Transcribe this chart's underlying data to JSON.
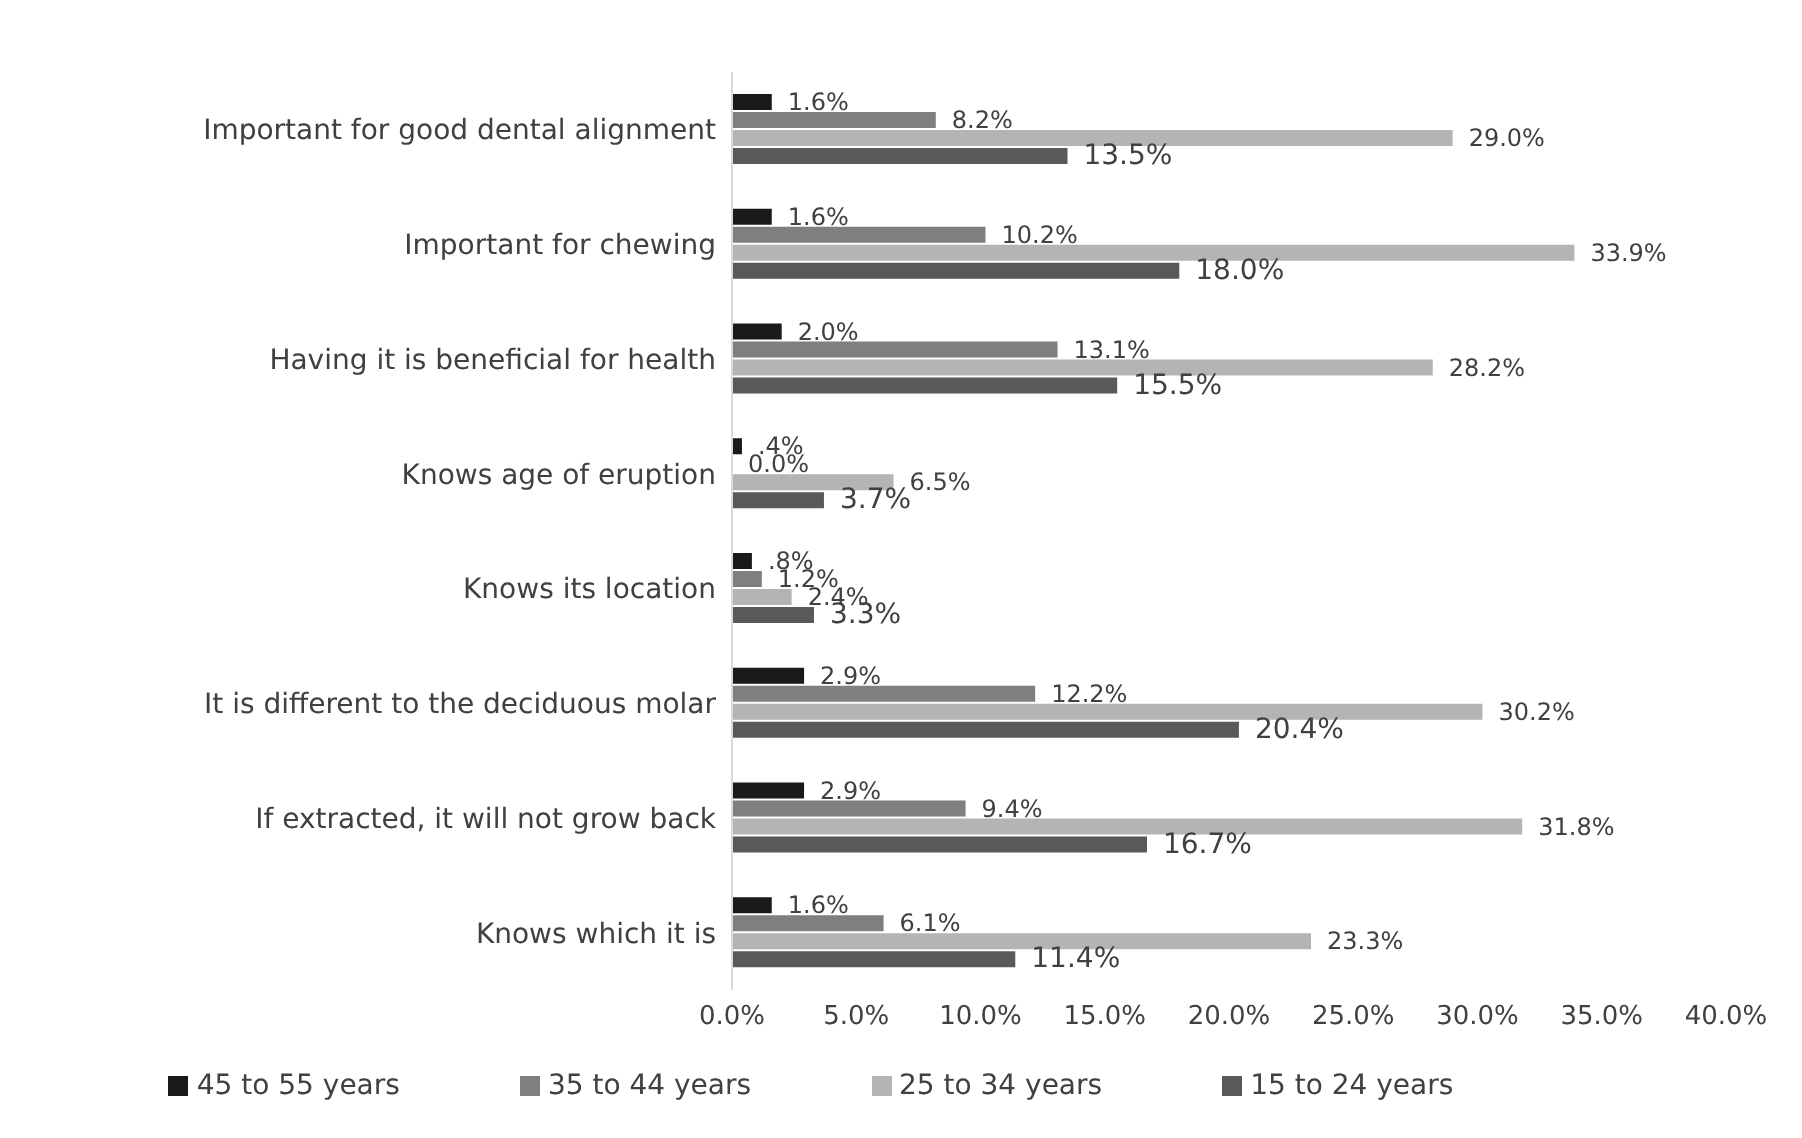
{
  "chart_data": {
    "type": "bar",
    "orientation": "horizontal",
    "categories": [
      "Important for good dental alignment",
      "Important for chewing",
      "Having it is beneficial for health",
      "Knows age of eruption",
      "Knows its location",
      "It is different to the deciduous molar",
      "If extracted, it will not grow back",
      "Knows which it is"
    ],
    "series": [
      {
        "name": "45 to 55 years",
        "color": "#1a1a1a",
        "values": [
          1.6,
          1.6,
          2.0,
          0.4,
          0.8,
          2.9,
          2.9,
          1.6
        ],
        "value_labels": [
          "1.6%",
          "1.6%",
          "2.0%",
          ".4%",
          ".8%",
          "2.9%",
          "2.9%",
          "1.6%"
        ]
      },
      {
        "name": "35 to 44 years",
        "color": "#7f7f7f",
        "values": [
          8.2,
          10.2,
          13.1,
          0.0,
          1.2,
          12.2,
          9.4,
          6.1
        ],
        "value_labels": [
          "8.2%",
          "10.2%",
          "13.1%",
          "0.0%",
          "1.2%",
          "12.2%",
          "9.4%",
          "6.1%"
        ]
      },
      {
        "name": "25 to 34 years",
        "color": "#b4b4b4",
        "values": [
          29.0,
          33.9,
          28.2,
          6.5,
          2.4,
          30.2,
          31.8,
          23.3
        ],
        "value_labels": [
          "29.0%",
          "33.9%",
          "28.2%",
          "6.5%",
          "2.4%",
          "30.2%",
          "31.8%",
          "23.3%"
        ]
      },
      {
        "name": "15 to 24 years",
        "color": "#595959",
        "values": [
          13.5,
          18.0,
          15.5,
          3.7,
          3.3,
          20.4,
          16.7,
          11.4
        ],
        "value_labels": [
          "13.5%",
          "18.0%",
          "15.5%",
          "3.7%",
          "3.3%",
          "20.4%",
          "16.7%",
          "11.4%"
        ]
      }
    ],
    "xlim": [
      0,
      40
    ],
    "xticks": [
      {
        "value": 0,
        "label": "0.0%"
      },
      {
        "value": 5,
        "label": "5.0%"
      },
      {
        "value": 10,
        "label": "10.0%"
      },
      {
        "value": 15,
        "label": "15.0%"
      },
      {
        "value": 20,
        "label": "20.0%"
      },
      {
        "value": 25,
        "label": "25.0%"
      },
      {
        "value": 30,
        "label": "30.0%"
      },
      {
        "value": 35,
        "label": "35.0%"
      },
      {
        "value": 40,
        "label": "40.0%"
      }
    ],
    "grid": false,
    "legend": "bottom"
  }
}
